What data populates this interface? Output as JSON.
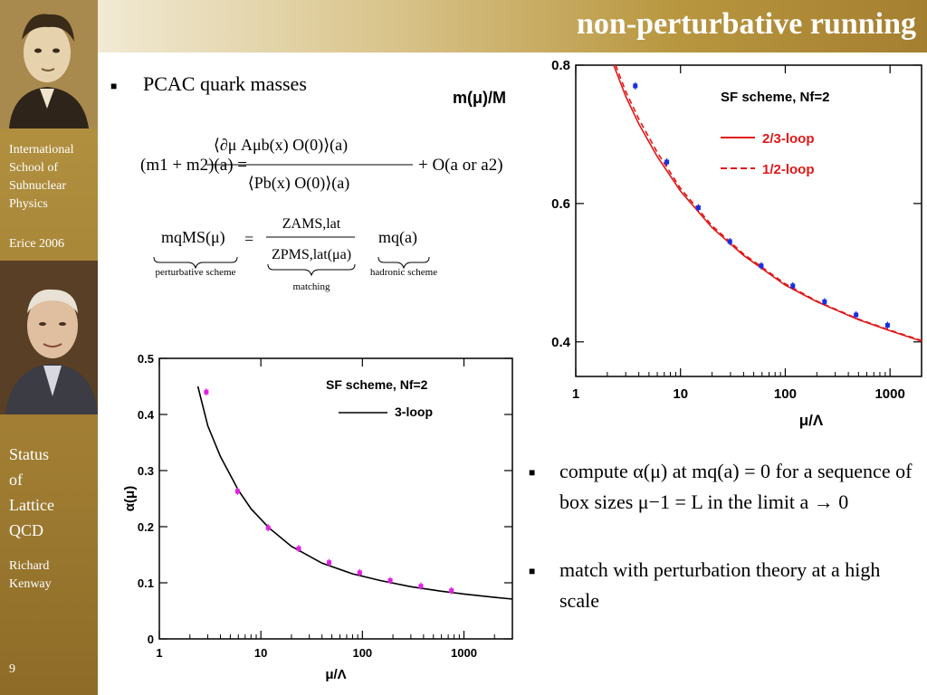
{
  "slide": {
    "title": "non-perturbative running",
    "page_number": "9"
  },
  "sidebar": {
    "school": [
      "International",
      "School of",
      "Subnuclear",
      "Physics"
    ],
    "event": "Erice 2006",
    "talk": [
      "Status",
      "of",
      "Lattice",
      "QCD"
    ],
    "author": [
      "Richard",
      "Kenway"
    ]
  },
  "bullets_left": [
    {
      "text": "PCAC quark masses"
    }
  ],
  "bullets_right": [
    {
      "text": "compute α(μ) at mq(a) = 0 for a sequence of box sizes μ−1 = L in the limit a → 0"
    },
    {
      "text": "match with perturbation theory at a high scale"
    }
  ],
  "formula": {
    "pcac_lhs": "(m1 + m2)(a) =",
    "pcac_num": "⟨∂μ Aμb(x) O(0)⟩(a)",
    "pcac_den": "⟨Pb(x) O(0)⟩(a)",
    "pcac_tail": "+ O(a or a2)",
    "match_lhs": "mqMS(μ)",
    "match_eq": "=",
    "match_num": "ZAMS,lat",
    "match_den": "ZPMS,lat(μa)",
    "match_rhs": "mq(a)",
    "label_perturbative": "perturbative scheme",
    "label_matching": "matching",
    "label_hadronic": "hadronic  scheme"
  },
  "chart_data": [
    {
      "type": "line",
      "title": "",
      "corner_label": "m(μ)/M",
      "xlabel": "μ/Λ",
      "ylabel": "",
      "x_scale": "log",
      "xlim": [
        1,
        2000
      ],
      "ylim": [
        0.35,
        0.8
      ],
      "xticks": [
        "1",
        "10",
        "100",
        "1000"
      ],
      "yticks": [
        "0.4",
        "0.6",
        "0.8"
      ],
      "legend_title": "SF scheme, Nf=2",
      "legend_position": "top-right",
      "series": [
        {
          "name": "2/3-loop",
          "style": "solid",
          "color": "#e01818",
          "x": [
            2.3,
            3,
            4,
            6,
            10,
            20,
            40,
            100,
            200,
            500,
            1000,
            2000
          ],
          "y": [
            0.8,
            0.755,
            0.715,
            0.668,
            0.618,
            0.565,
            0.525,
            0.482,
            0.458,
            0.432,
            0.416,
            0.401
          ]
        },
        {
          "name": "1/2-loop",
          "style": "dashed",
          "color": "#e01818",
          "x": [
            2.4,
            3,
            4,
            6,
            10,
            20,
            40,
            100,
            200,
            500,
            1000,
            2000
          ],
          "y": [
            0.8,
            0.762,
            0.722,
            0.674,
            0.622,
            0.568,
            0.527,
            0.484,
            0.459,
            0.433,
            0.417,
            0.402
          ]
        },
        {
          "name": "",
          "style": "points",
          "color": "#1a2ee0",
          "x": [
            3.7,
            7.4,
            14.8,
            29.6,
            59,
            118,
            237,
            474,
            947
          ],
          "y": [
            0.77,
            0.66,
            0.594,
            0.545,
            0.51,
            0.481,
            0.458,
            0.439,
            0.424
          ]
        }
      ]
    },
    {
      "type": "line",
      "title": "",
      "xlabel": "μ/Λ",
      "ylabel": "α(μ)",
      "x_scale": "log",
      "xlim": [
        1,
        3000
      ],
      "ylim": [
        0,
        0.5
      ],
      "xticks": [
        "1",
        "10",
        "100",
        "1000"
      ],
      "yticks": [
        "0",
        "0.1",
        "0.2",
        "0.3",
        "0.4",
        "0.5"
      ],
      "legend_title": "SF scheme, Nf=2",
      "legend_position": "top-right",
      "series": [
        {
          "name": "3-loop",
          "style": "solid",
          "color": "#000000",
          "x": [
            2.4,
            3,
            4,
            6,
            8,
            12,
            20,
            40,
            80,
            150,
            300,
            600,
            1000,
            2000,
            3000
          ],
          "y": [
            0.45,
            0.38,
            0.325,
            0.265,
            0.232,
            0.198,
            0.165,
            0.135,
            0.116,
            0.104,
            0.093,
            0.085,
            0.08,
            0.074,
            0.071
          ]
        },
        {
          "name": "",
          "style": "points",
          "color": "#e020e0",
          "x": [
            2.9,
            5.9,
            11.8,
            23.6,
            47,
            94,
            188,
            377,
            754
          ],
          "y": [
            0.44,
            0.263,
            0.198,
            0.161,
            0.136,
            0.118,
            0.104,
            0.094,
            0.086
          ]
        }
      ]
    }
  ]
}
